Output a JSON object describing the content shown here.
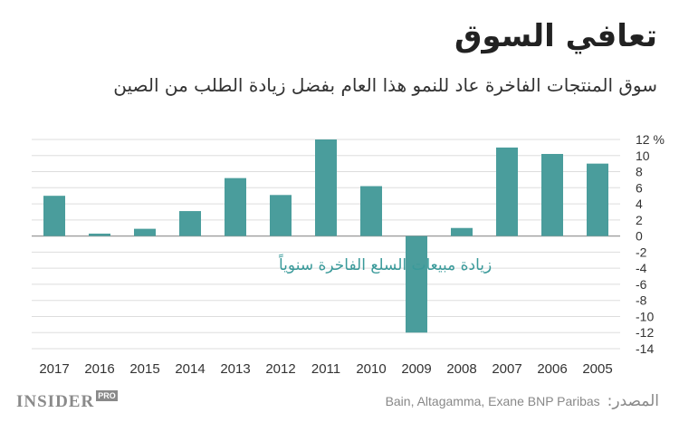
{
  "header": {
    "title": "تعافي السوق",
    "subtitle": "سوق المنتجات الفاخرة عاد للنمو هذا العام بفضل زيادة الطلب من الصين"
  },
  "footer": {
    "logo_text": "INSIDER",
    "logo_badge": "PRO",
    "source_label": ":المصدر",
    "source_text": "Bain, Altagamma, Exane BNP Paribas"
  },
  "colors": {
    "bar": "#4a9d9c",
    "annotation": "#3a9a9a",
    "grid": "#dddddd",
    "axis": "#999999"
  },
  "chart_data": {
    "type": "bar",
    "categories": [
      "2017",
      "2016",
      "2015",
      "2014",
      "2013",
      "2012",
      "2011",
      "2010",
      "2009",
      "2008",
      "2007",
      "2006",
      "2005"
    ],
    "values": [
      5,
      0.3,
      0.9,
      3.1,
      7.2,
      5.1,
      12,
      6.2,
      -12,
      1,
      11,
      10.2,
      9
    ],
    "ylim": [
      -14,
      12
    ],
    "yticks": [
      12,
      10,
      8,
      6,
      4,
      2,
      0,
      -2,
      -4,
      -6,
      -8,
      -10,
      -12,
      -14
    ],
    "ytick_labels": [
      "12 %",
      "10",
      "8",
      "6",
      "4",
      "2",
      "0",
      "-2",
      "-4",
      "-6",
      "-8",
      "-10",
      "-12",
      "-14"
    ],
    "annotation": "زيادة مبيعات السلع الفاخرة سنوياً",
    "grid": true
  }
}
